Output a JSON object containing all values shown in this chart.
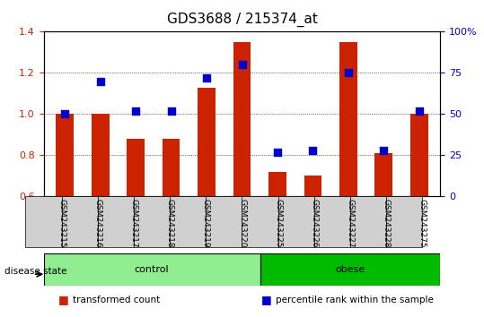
{
  "title": "GDS3688 / 215374_at",
  "samples": [
    "GSM243215",
    "GSM243216",
    "GSM243217",
    "GSM243218",
    "GSM243219",
    "GSM243220",
    "GSM243225",
    "GSM243226",
    "GSM243227",
    "GSM243228",
    "GSM243275"
  ],
  "transformed_count": [
    1.0,
    1.0,
    0.88,
    0.88,
    1.13,
    1.35,
    0.72,
    0.7,
    1.35,
    0.81,
    1.0
  ],
  "percentile_rank": [
    50,
    70,
    52,
    52,
    72,
    80,
    27,
    28,
    75,
    28,
    52
  ],
  "groups": [
    {
      "label": "control",
      "indices": [
        0,
        1,
        2,
        3,
        4,
        5
      ],
      "color": "#90EE90"
    },
    {
      "label": "obese",
      "indices": [
        6,
        7,
        8,
        9,
        10
      ],
      "color": "#00CC00"
    }
  ],
  "bar_color": "#CC2200",
  "dot_color": "#0000CC",
  "ylim_left": [
    0.6,
    1.4
  ],
  "ylim_right": [
    0,
    100
  ],
  "yticks_left": [
    0.6,
    0.8,
    1.0,
    1.2,
    1.4
  ],
  "yticks_right": [
    0,
    25,
    50,
    75,
    100
  ],
  "ytick_labels_right": [
    "0",
    "25",
    "50",
    "75",
    "100%"
  ],
  "grid_color": "#000000",
  "bg_color": "#ffffff",
  "plot_bg": "#ffffff",
  "disease_state_label": "disease state",
  "legend_items": [
    {
      "label": "transformed count",
      "color": "#CC2200"
    },
    {
      "label": "percentile rank within the sample",
      "color": "#0000CC"
    }
  ],
  "title_fontsize": 11,
  "tick_fontsize": 8,
  "axis_label_fontsize": 8
}
